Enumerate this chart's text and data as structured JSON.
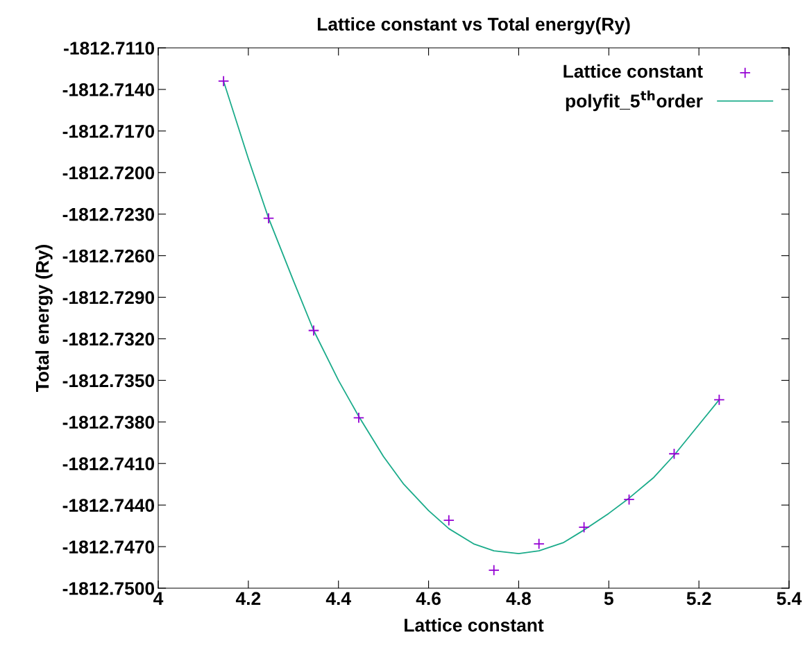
{
  "chart_data": {
    "type": "scatter",
    "title": "Lattice constant vs Total energy(Ry)",
    "xlabel": "Lattice constant",
    "ylabel": "Total energy (Ry)",
    "series": [
      {
        "name": "Lattice constant",
        "color": "#9400d3",
        "marker": "cross",
        "x": [
          4.145,
          4.245,
          4.345,
          4.445,
          4.645,
          4.745,
          4.845,
          4.945,
          5.045,
          5.145,
          5.245
        ],
        "values": [
          -1812.7134,
          -1812.7233,
          -1812.7314,
          -1812.7377,
          -1812.7451,
          -1812.7487,
          -1812.7468,
          -1812.7456,
          -1812.7436,
          -1812.7403,
          -1812.7364
        ]
      },
      {
        "name": "polyfit_5$^{th}$order",
        "type": "line",
        "color": "#1aab8a",
        "line_style": "solid",
        "x": [
          4.145,
          4.2,
          4.245,
          4.3,
          4.345,
          4.4,
          4.445,
          4.5,
          4.545,
          4.6,
          4.645,
          4.7,
          4.745,
          4.8,
          4.845,
          4.9,
          4.945,
          5.0,
          5.045,
          5.1,
          5.145,
          5.2,
          5.245
        ],
        "values": [
          -1812.7134,
          -1812.719,
          -1812.7233,
          -1812.7278,
          -1812.7314,
          -1812.735,
          -1812.7376,
          -1812.7405,
          -1812.7425,
          -1812.7444,
          -1812.7457,
          -1812.7468,
          -1812.7473,
          -1812.7475,
          -1812.7473,
          -1812.7467,
          -1812.7458,
          -1812.7446,
          -1812.7435,
          -1812.742,
          -1812.7404,
          -1812.7382,
          -1812.7364
        ]
      }
    ],
    "xlim": [
      4,
      5.4
    ],
    "xticks": [
      4,
      4.2,
      4.4,
      4.6,
      4.8,
      5,
      5.2,
      5.4
    ],
    "ylim": [
      -1812.75,
      -1812.711
    ],
    "yticks": [
      {
        "value": -1812.711,
        "label": "-1812.7110"
      },
      {
        "value": -1812.714,
        "label": "-1812.7140"
      },
      {
        "value": -1812.717,
        "label": "-1812.7170"
      },
      {
        "value": -1812.72,
        "label": "-1812.7200"
      },
      {
        "value": -1812.723,
        "label": "-1812.7230"
      },
      {
        "value": -1812.726,
        "label": "-1812.7260"
      },
      {
        "value": -1812.729,
        "label": "-1812.7290"
      },
      {
        "value": -1812.732,
        "label": "-1812.7320"
      },
      {
        "value": -1812.735,
        "label": "-1812.7350"
      },
      {
        "value": -1812.738,
        "label": "-1812.7380"
      },
      {
        "value": -1812.741,
        "label": "-1812.7410"
      },
      {
        "value": -1812.744,
        "label": "-1812.7440"
      },
      {
        "value": -1812.747,
        "label": "-1812.7470"
      },
      {
        "value": -1812.75,
        "label": "-1812.7500"
      }
    ],
    "grid": false,
    "legend": "top right"
  }
}
